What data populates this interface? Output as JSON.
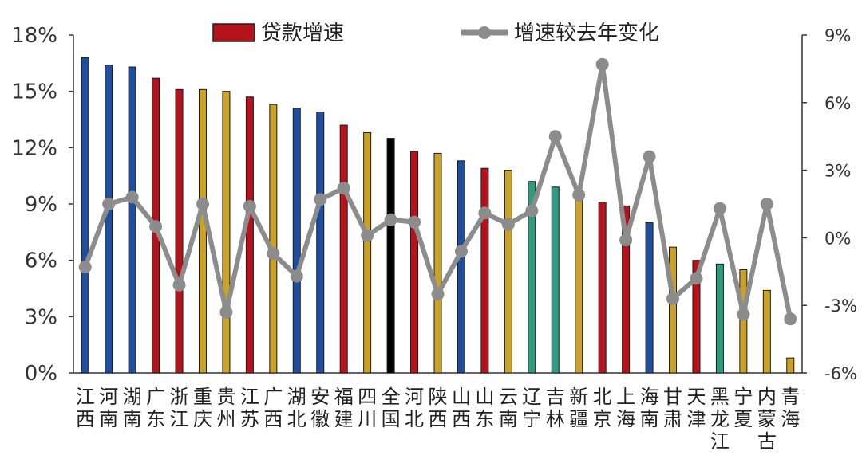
{
  "chart_data": {
    "type": "bar",
    "categories": [
      [
        "江",
        "西"
      ],
      [
        "河",
        "南"
      ],
      [
        "湖",
        "南"
      ],
      [
        "广",
        "东"
      ],
      [
        "浙",
        "江"
      ],
      [
        "重",
        "庆"
      ],
      [
        "贵",
        "州"
      ],
      [
        "江",
        "苏"
      ],
      [
        "广",
        "西"
      ],
      [
        "湖",
        "北"
      ],
      [
        "安",
        "徽"
      ],
      [
        "福",
        "建"
      ],
      [
        "四",
        "川"
      ],
      [
        "全",
        "国"
      ],
      [
        "河",
        "北"
      ],
      [
        "陕",
        "西"
      ],
      [
        "山",
        "西"
      ],
      [
        "山",
        "东"
      ],
      [
        "云",
        "南"
      ],
      [
        "辽",
        "宁"
      ],
      [
        "吉",
        "林"
      ],
      [
        "新",
        "疆"
      ],
      [
        "北",
        "京"
      ],
      [
        "上",
        "海"
      ],
      [
        "海",
        "南"
      ],
      [
        "甘",
        "肃"
      ],
      [
        "天",
        "津"
      ],
      [
        "黑",
        "龙",
        "江"
      ],
      [
        "宁",
        "夏"
      ],
      [
        "内",
        "蒙",
        "古"
      ],
      [
        "青",
        "海"
      ]
    ],
    "bar_colors": [
      "#1f4e9e",
      "#1f4e9e",
      "#1f4e9e",
      "#b5121b",
      "#b5121b",
      "#c9a227",
      "#c9a227",
      "#b5121b",
      "#c9a227",
      "#1f4e9e",
      "#1f4e9e",
      "#b5121b",
      "#c9a227",
      "#000000",
      "#b5121b",
      "#c9a227",
      "#1f4e9e",
      "#b5121b",
      "#c9a227",
      "#2e9c7f",
      "#2e9c7f",
      "#c9a227",
      "#b5121b",
      "#b5121b",
      "#1f4e9e",
      "#c9a227",
      "#b5121b",
      "#2e9c7f",
      "#c9a227",
      "#c9a227",
      "#c9a227"
    ],
    "series": [
      {
        "name": "贷款增速",
        "type": "bar",
        "axis": "left",
        "values": [
          16.8,
          16.4,
          16.3,
          15.7,
          15.1,
          15.1,
          15.0,
          14.7,
          14.3,
          14.1,
          13.9,
          13.2,
          12.8,
          12.5,
          11.8,
          11.7,
          11.3,
          10.9,
          10.8,
          10.2,
          9.9,
          9.4,
          9.1,
          8.9,
          8.0,
          6.7,
          6.0,
          5.8,
          5.5,
          4.4,
          0.8
        ]
      },
      {
        "name": "增速较去年变化",
        "type": "line",
        "axis": "right",
        "values": [
          -1.3,
          1.5,
          1.8,
          0.5,
          -2.1,
          1.5,
          -3.3,
          1.4,
          -0.7,
          -1.7,
          1.7,
          2.2,
          0.1,
          0.8,
          0.7,
          -2.5,
          -0.6,
          1.1,
          0.6,
          1.2,
          4.5,
          1.9,
          7.7,
          -0.1,
          3.6,
          -2.7,
          -1.8,
          1.3,
          -3.4,
          1.5,
          -3.6
        ]
      }
    ],
    "y_left": {
      "min": 0,
      "max": 18,
      "ticks": [
        0,
        3,
        6,
        9,
        12,
        15,
        18
      ],
      "tick_labels": [
        "0%",
        "3%",
        "6%",
        "9%",
        "12%",
        "15%",
        "18%"
      ]
    },
    "y_right": {
      "min": -6,
      "max": 9,
      "ticks": [
        -6,
        -3,
        0,
        3,
        6,
        9
      ],
      "tick_labels": [
        "-6%",
        "-3%",
        "0%",
        "3%",
        "6%",
        "9%"
      ]
    },
    "legend": {
      "position": "top",
      "line_color": "#8c8c8c",
      "legend_bar_color": "#b5121b"
    },
    "grid": false,
    "title": "",
    "xlabel": "",
    "ylabel": ""
  }
}
